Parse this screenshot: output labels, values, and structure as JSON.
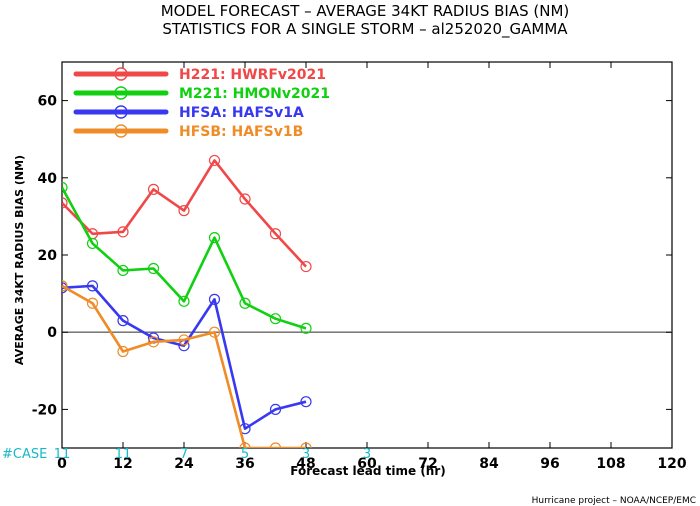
{
  "title_line1": "MODEL FORECAST – AVERAGE 34KT RADIUS BIAS (NM)",
  "title_line2": "STATISTICS FOR A SINGLE STORM – al252020_GAMMA",
  "case_label": "#CASE",
  "case_counts": [
    {
      "x": 0,
      "label": "11"
    },
    {
      "x": 12,
      "label": "11"
    },
    {
      "x": 24,
      "label": "7"
    },
    {
      "x": 36,
      "label": "5"
    },
    {
      "x": 48,
      "label": "3"
    },
    {
      "x": 60,
      "label": "3"
    }
  ],
  "credit": "Hurricane project – NOAA/NCEP/EMC",
  "colors": {
    "axis": "#000000",
    "zero_line": "#666666",
    "case_text": "#16b8c8"
  },
  "chart_data": {
    "type": "line",
    "title": "MODEL FORECAST – AVERAGE 34KT RADIUS BIAS (NM)",
    "subtitle": "STATISTICS FOR A SINGLE STORM – al252020_GAMMA",
    "xlabel": "Forecast lead time (hr)",
    "ylabel": "AVERAGE 34KT RADIUS BIAS (NM)",
    "xlim": [
      0,
      120
    ],
    "ylim": [
      -30,
      70
    ],
    "xticks": [
      0,
      12,
      24,
      36,
      48,
      60,
      72,
      84,
      96,
      108,
      120
    ],
    "yticks": [
      -20,
      0,
      20,
      40,
      60
    ],
    "zero_line": true,
    "legend_position": "top-left",
    "series": [
      {
        "name": "H221: HWRFv2021",
        "color": "#f04848",
        "x": [
          0,
          6,
          12,
          18,
          24,
          30,
          36,
          42,
          48
        ],
        "y": [
          33.5,
          25.5,
          26,
          37,
          31.5,
          44.5,
          34.5,
          25.5,
          17
        ]
      },
      {
        "name": "M221: HMONv2021",
        "color": "#10d010",
        "x": [
          0,
          6,
          12,
          18,
          24,
          30,
          36,
          42,
          48
        ],
        "y": [
          37.5,
          23,
          16,
          16.5,
          8,
          24.5,
          7.5,
          3.5,
          1
        ]
      },
      {
        "name": "HFSA: HAFSv1A",
        "color": "#3838f0",
        "x": [
          0,
          6,
          12,
          18,
          24,
          30,
          36,
          42,
          48
        ],
        "y": [
          11.5,
          12,
          3,
          -1.5,
          -3.5,
          8.5,
          -25,
          -20,
          -18
        ]
      },
      {
        "name": "HFSB: HAFSv1B",
        "color": "#f08c28",
        "x": [
          0,
          6,
          12,
          18,
          24,
          30,
          36,
          42,
          48
        ],
        "y": [
          12,
          7.5,
          -5,
          -2.5,
          -2,
          0,
          -30,
          -30,
          -30
        ]
      }
    ]
  }
}
